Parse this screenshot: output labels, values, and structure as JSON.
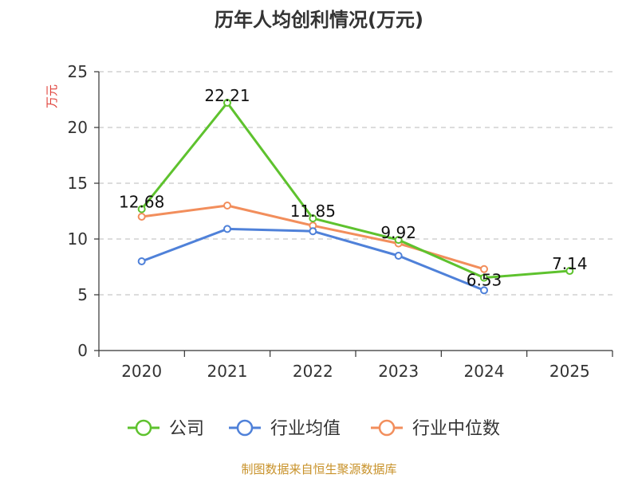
{
  "chart_data": {
    "type": "line",
    "title": "历年人均创利情况(万元)",
    "ylabel": "万元",
    "xlabel": "",
    "categories": [
      "2020",
      "2021",
      "2022",
      "2023",
      "2024",
      "2025"
    ],
    "ylim": [
      0,
      25
    ],
    "yticks": [
      0,
      5,
      10,
      15,
      20,
      25
    ],
    "grid": true,
    "legend_position": "bottom",
    "series": [
      {
        "name": "公司",
        "color": "#5ec22e",
        "values": [
          12.68,
          22.21,
          11.85,
          9.92,
          6.53,
          7.14
        ],
        "labels": [
          "12.68",
          "22.21",
          "11.85",
          "9.92",
          "6.53",
          "7.14"
        ]
      },
      {
        "name": "行业均值",
        "color": "#4f81d9",
        "values": [
          8.0,
          10.9,
          10.7,
          8.5,
          5.4,
          null
        ]
      },
      {
        "name": "行业中位数",
        "color": "#f28e5c",
        "values": [
          12.0,
          13.0,
          11.2,
          9.6,
          7.3,
          null
        ]
      }
    ],
    "source": "制图数据来自恒生聚源数据库"
  }
}
